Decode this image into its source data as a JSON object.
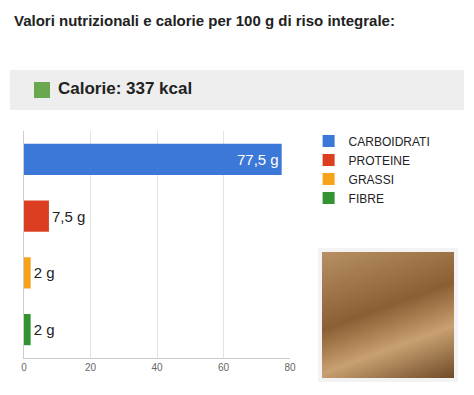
{
  "chart_data": {
    "type": "bar",
    "title": "Valori nutrizionali e calorie per 100 g di riso integrale:",
    "subtitle": "Calorie: 337 kcal",
    "orientation": "horizontal",
    "categories": [
      "CARBOIDRATI",
      "PROTEINE",
      "GRASSI",
      "FIBRE"
    ],
    "values": [
      77.5,
      7.5,
      2,
      2
    ],
    "value_labels": [
      "77,5 g",
      "7,5 g",
      "2 g",
      "2 g"
    ],
    "colors": [
      "#3c78d8",
      "#dc3e22",
      "#f6a21a",
      "#33932f"
    ],
    "data_labels": true,
    "xlim": [
      0,
      80
    ],
    "xticks": [
      0,
      20,
      40,
      60,
      80
    ],
    "grid": true,
    "legend": "upper right",
    "tick_labels": "x"
  }
}
